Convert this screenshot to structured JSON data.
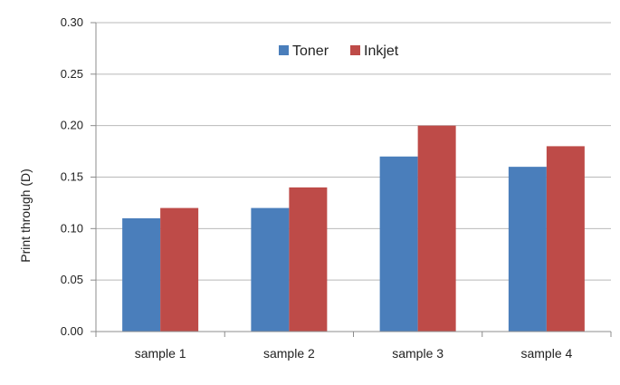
{
  "chart_data": {
    "type": "bar",
    "title": "",
    "xlabel": "",
    "ylabel": "Print through (D)",
    "ylim": [
      0,
      0.3
    ],
    "yticks": [
      "0.00",
      "0.05",
      "0.10",
      "0.15",
      "0.20",
      "0.25",
      "0.30"
    ],
    "categories": [
      "sample 1",
      "sample 2",
      "sample 3",
      "sample 4"
    ],
    "series": [
      {
        "name": "Toner",
        "color": "#4a7ebb",
        "values": [
          0.11,
          0.12,
          0.17,
          0.16
        ]
      },
      {
        "name": "Inkjet",
        "color": "#be4b48",
        "values": [
          0.12,
          0.14,
          0.2,
          0.18
        ]
      }
    ],
    "grid": true,
    "legend_position": "top-center"
  }
}
